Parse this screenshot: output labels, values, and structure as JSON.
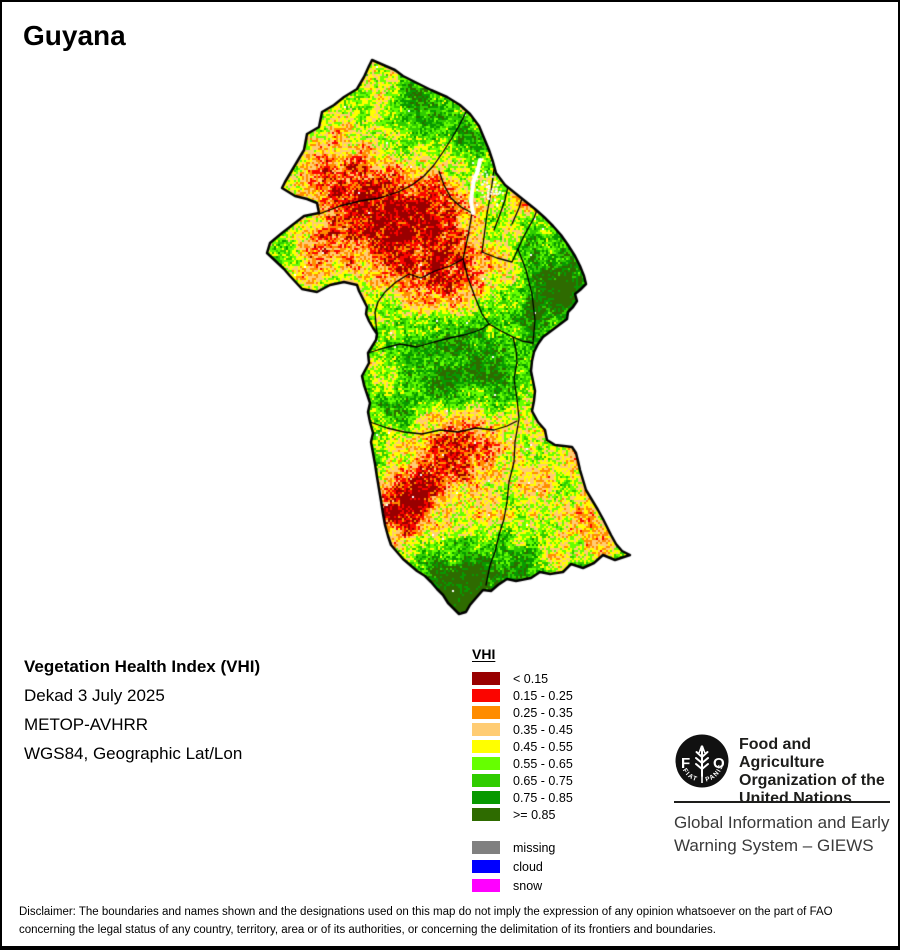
{
  "title": "Guyana",
  "info": {
    "product": "Vegetation Health Index (VHI)",
    "dekad": "Dekad 3 July 2025",
    "sensor": "METOP-AVHRR",
    "projection": "WGS84, Geographic Lat/Lon"
  },
  "legend": {
    "title": "VHI",
    "classes": [
      {
        "label": "< 0.15",
        "color": "#990000"
      },
      {
        "label": "0.15 - 0.25",
        "color": "#FB0500"
      },
      {
        "label": "0.25 - 0.35",
        "color": "#FF8C00"
      },
      {
        "label": "0.35 - 0.45",
        "color": "#FFCC73"
      },
      {
        "label": "0.45 - 0.55",
        "color": "#FFFF00"
      },
      {
        "label": "0.55 - 0.65",
        "color": "#66FF00"
      },
      {
        "label": "0.65 - 0.75",
        "color": "#30CC00"
      },
      {
        "label": "0.75 - 0.85",
        "color": "#089900"
      },
      {
        "label": ">= 0.85",
        "color": "#2E6B00"
      }
    ],
    "extra": [
      {
        "label": "missing",
        "color": "#808080"
      },
      {
        "label": "cloud",
        "color": "#0000FF"
      },
      {
        "label": "snow",
        "color": "#FF00FF"
      }
    ]
  },
  "footer": {
    "logo": {
      "letter_f": "F",
      "letter_a": "A",
      "letter_o": "O",
      "motto_left": "FIAT",
      "motto_right": "PANIS"
    },
    "org_lines": [
      "Food and Agriculture",
      "Organization of the",
      "United Nations"
    ],
    "giews_lines": [
      "Global Information and Early",
      "Warning System – GIEWS"
    ]
  },
  "disclaimer_lines": [
    "Disclaimer: The boundaries and names shown and the designations used on this map do not imply the expression of any opinion whatsoever on the part of FAO",
    "concerning the legal status of any country, territory, area or of its authorities, or concerning the delimitation of its frontiers and boundaries."
  ]
}
